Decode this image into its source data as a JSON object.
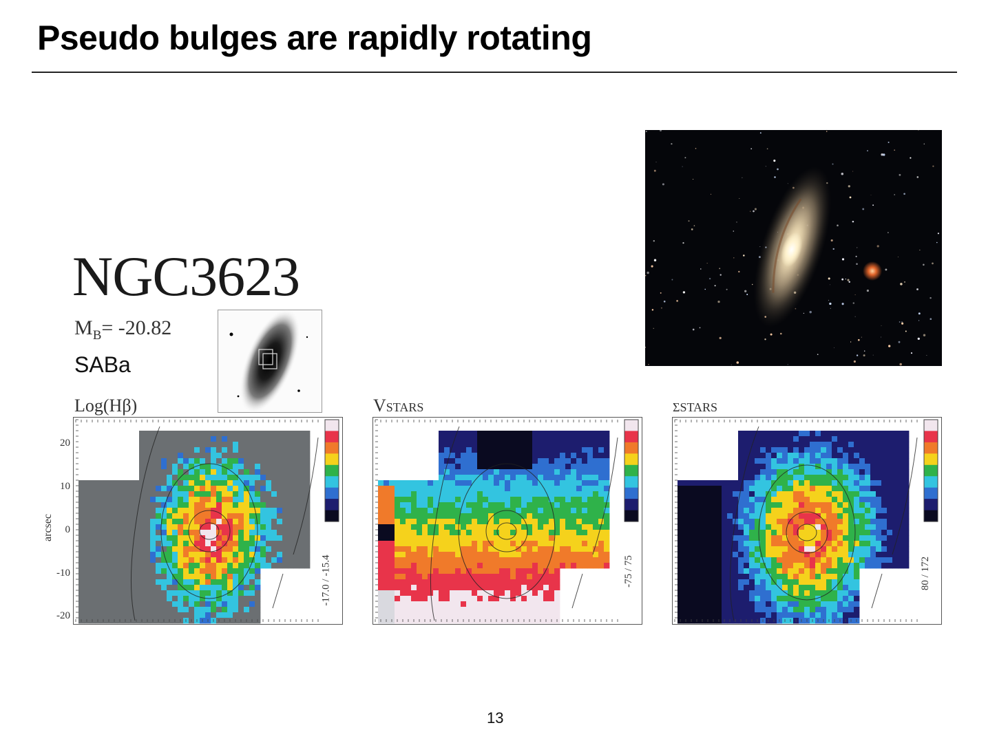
{
  "slide": {
    "title": "Pseudo bulges are rapidly rotating",
    "page_number": "13"
  },
  "galaxy": {
    "name": "NGC3623",
    "magnitude_prefix": "M",
    "magnitude_sub": "B",
    "magnitude_value": "= -20.82",
    "type": "SABa"
  },
  "axis": {
    "title": "arcsec",
    "ticks": [
      "20",
      "10",
      "0",
      "-10",
      "-20"
    ]
  },
  "panels": [
    {
      "id": "hbeta",
      "label": "Log(Hβ)",
      "range": "-17.0 / -15.4"
    },
    {
      "id": "vstars",
      "label": "Vstars",
      "range": "-75 / 75"
    },
    {
      "id": "sigmastars",
      "label": "σstars",
      "range": "80 / 172"
    }
  ],
  "colorbar": [
    "#f2e6ee",
    "#e8344a",
    "#f07a2a",
    "#f5d21c",
    "#2fb24a",
    "#33c4e0",
    "#2f6fd0",
    "#1d1d6e",
    "#0a0a20"
  ],
  "colors": {
    "map_background": "#6b6f72",
    "sky": "#05060a"
  }
}
